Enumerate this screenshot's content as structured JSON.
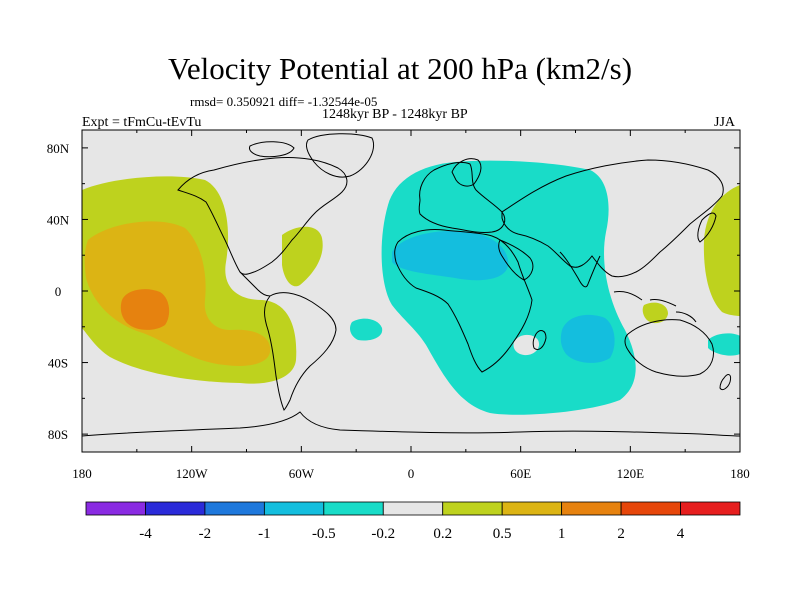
{
  "title": "Velocity Potential at 200 hPa (km2/s)",
  "stats": "rmsd= 0.350921 diff= -1.32544e-05",
  "period": "1248kyr BP - 1248kyr BP",
  "experiment": "Expt = tFmCu-tEvTu",
  "season": "JJA",
  "axes": {
    "x_ticks": [
      "180",
      "120W",
      "60W",
      "0",
      "60E",
      "120E",
      "180"
    ],
    "y_ticks": [
      "80N",
      "40N",
      "0",
      "40S",
      "80S"
    ]
  },
  "colorbar": {
    "colors": [
      "#8a2be2",
      "#2b2bd9",
      "#1e78dc",
      "#14bede",
      "#19dcc8",
      "#e6e6e6",
      "#bed21e",
      "#dcb414",
      "#e6820f",
      "#e6460a",
      "#e61e1e"
    ],
    "labels": [
      "-4",
      "-2",
      "-1",
      "-0.5",
      "-0.2",
      "0.2",
      "0.5",
      "1",
      "2",
      "4"
    ]
  },
  "field_colors": {
    "background": "#e6e6e6",
    "pos_weak": "#bed21e",
    "pos_mid": "#dcb414",
    "pos_strong": "#e6820f",
    "neg_weak": "#19dcc8",
    "neg_mid": "#14bede"
  }
}
